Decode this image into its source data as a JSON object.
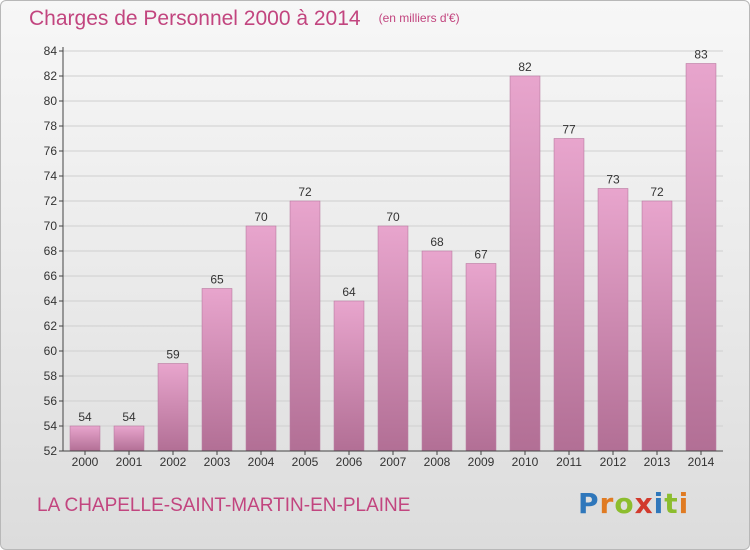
{
  "title": "Charges de Personnel 2000 à 2014",
  "subtitle": "(en milliers d'€)",
  "footer_label": "LA CHAPELLE-SAINT-MARTIN-EN-PLAINE",
  "logo_text": "Proxiti",
  "colors": {
    "bar_top": "#e8a5cd",
    "bar_bottom": "#b26f95",
    "title": "#c2457f",
    "grid": "#cfcfcf"
  },
  "chart_data": {
    "type": "bar",
    "categories": [
      "2000",
      "2001",
      "2002",
      "2003",
      "2004",
      "2005",
      "2006",
      "2007",
      "2008",
      "2009",
      "2010",
      "2011",
      "2012",
      "2013",
      "2014"
    ],
    "values": [
      54,
      54,
      59,
      65,
      70,
      72,
      64,
      70,
      68,
      67,
      82,
      77,
      73,
      72,
      83
    ],
    "ylim": [
      52,
      84
    ],
    "yticks": [
      52,
      54,
      56,
      58,
      60,
      62,
      64,
      66,
      68,
      70,
      72,
      74,
      76,
      78,
      80,
      82,
      84
    ],
    "grid": true,
    "legend": "none"
  }
}
